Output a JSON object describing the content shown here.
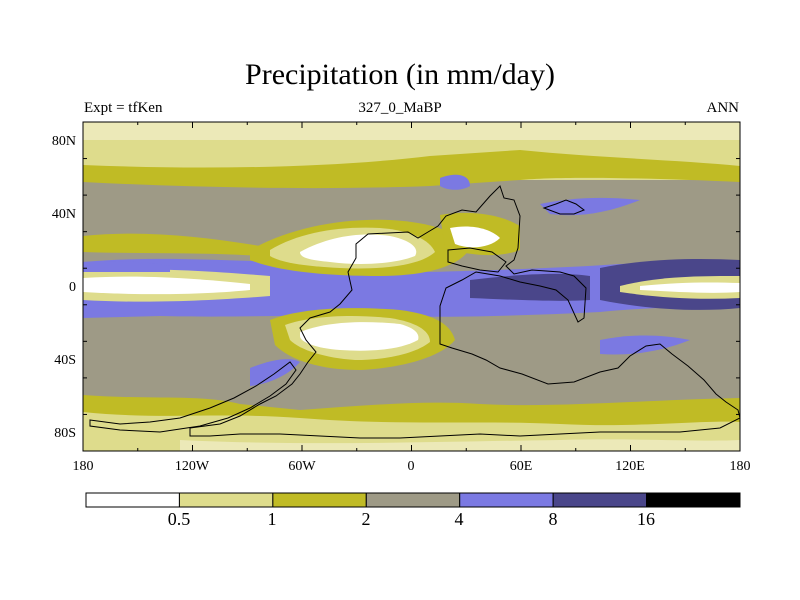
{
  "title": "Precipitation (in mm/day)",
  "subtitle_left": "Expt = tfKen",
  "subtitle_center": "327_0_MaBP",
  "subtitle_right": "ANN",
  "axes": {
    "lon_ticks": [
      "180",
      "120W",
      "60W",
      "0",
      "60E",
      "120E",
      "180"
    ],
    "lat_ticks": [
      "80N",
      "40N",
      "0",
      "40S",
      "80S"
    ]
  },
  "colorbar": {
    "levels": [
      "0.5",
      "1",
      "2",
      "4",
      "8",
      "16"
    ],
    "colors": [
      "#ffffff",
      "#dedc8c",
      "#c0bb25",
      "#9e9a86",
      "#7b79e2",
      "#4a468a",
      "#000000"
    ]
  }
}
